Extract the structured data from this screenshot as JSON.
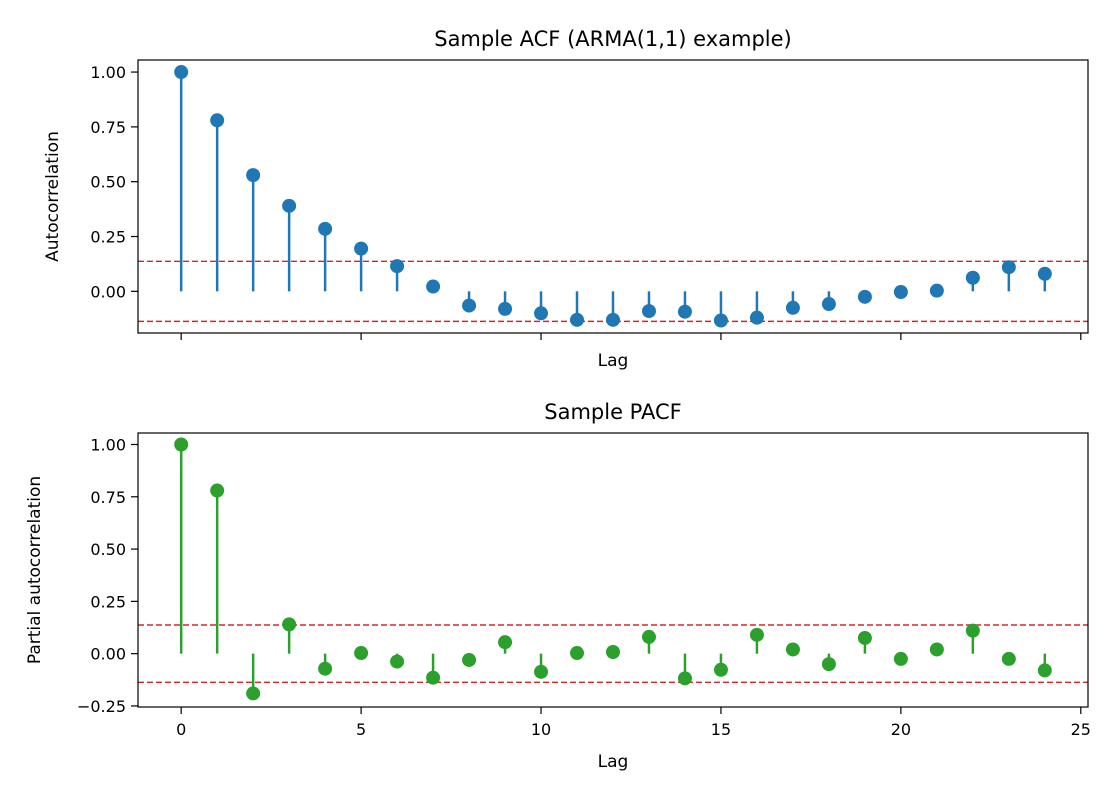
{
  "chart_data": [
    {
      "type": "stem",
      "title": "Sample ACF (ARMA(1,1) example)",
      "xlabel": "Lag",
      "ylabel": "Autocorrelation",
      "color": "#1f77b4",
      "conf_color": "#d62728",
      "conf_band": 0.137,
      "xlim": [
        -1.2,
        25.2
      ],
      "ylim": [
        -0.19,
        1.055
      ],
      "xticks": [
        0,
        5,
        10,
        15,
        20,
        25
      ],
      "show_xtick_labels": false,
      "yticks": [
        0.0,
        0.25,
        0.5,
        0.75,
        1.0
      ],
      "ytick_labels": [
        "0.00",
        "0.25",
        "0.50",
        "0.75",
        "1.00"
      ],
      "x": [
        0,
        1,
        2,
        3,
        4,
        5,
        6,
        7,
        8,
        9,
        10,
        11,
        12,
        13,
        14,
        15,
        16,
        17,
        18,
        19,
        20,
        21,
        22,
        23,
        24
      ],
      "values": [
        1.0,
        0.78,
        0.53,
        0.39,
        0.285,
        0.195,
        0.115,
        0.022,
        -0.065,
        -0.08,
        -0.1,
        -0.13,
        -0.13,
        -0.09,
        -0.093,
        -0.133,
        -0.12,
        -0.075,
        -0.058,
        -0.025,
        -0.003,
        0.003,
        0.062,
        0.11,
        0.08
      ]
    },
    {
      "type": "stem",
      "title": "Sample PACF",
      "xlabel": "Lag",
      "ylabel": "Partial autocorrelation",
      "color": "#2ca02c",
      "conf_color": "#d62728",
      "conf_band": 0.137,
      "xlim": [
        -1.2,
        25.2
      ],
      "ylim": [
        -0.255,
        1.055
      ],
      "xticks": [
        0,
        5,
        10,
        15,
        20,
        25
      ],
      "xtick_labels": [
        "0",
        "5",
        "10",
        "15",
        "20",
        "25"
      ],
      "show_xtick_labels": true,
      "yticks": [
        -0.25,
        0.0,
        0.25,
        0.5,
        0.75,
        1.0
      ],
      "ytick_labels": [
        "−0.25",
        "0.00",
        "0.25",
        "0.50",
        "0.75",
        "1.00"
      ],
      "x": [
        0,
        1,
        2,
        3,
        4,
        5,
        6,
        7,
        8,
        9,
        10,
        11,
        12,
        13,
        14,
        15,
        16,
        17,
        18,
        19,
        20,
        21,
        22,
        23,
        24
      ],
      "values": [
        1.0,
        0.78,
        -0.19,
        0.14,
        -0.072,
        0.003,
        -0.038,
        -0.115,
        -0.03,
        0.055,
        -0.087,
        0.003,
        0.008,
        0.08,
        -0.118,
        -0.077,
        0.09,
        0.02,
        -0.05,
        0.075,
        -0.025,
        0.02,
        0.11,
        -0.025,
        -0.08
      ]
    }
  ]
}
